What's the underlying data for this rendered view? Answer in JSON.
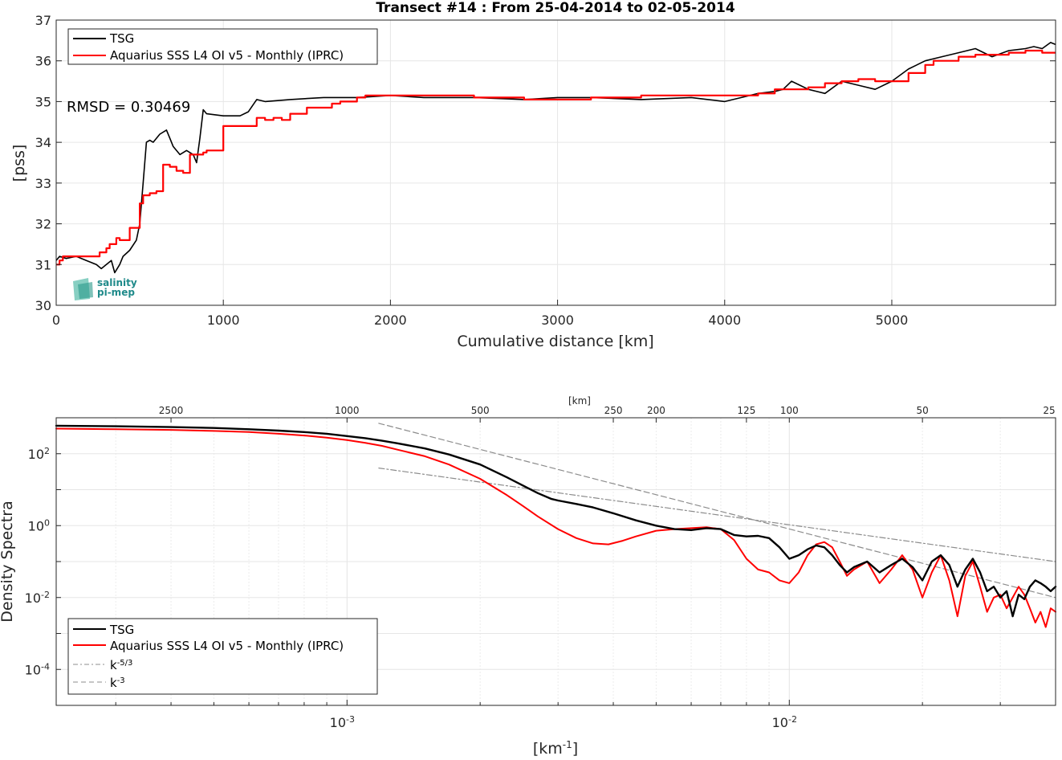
{
  "chart_data": [
    {
      "type": "line",
      "title": "Transect #14 : From 25-04-2014 to 02-05-2014",
      "xlabel": "Cumulative distance [km]",
      "ylabel": "[pss]",
      "xlim": [
        0,
        5980
      ],
      "ylim": [
        30,
        37
      ],
      "xticks": [
        0,
        1000,
        2000,
        3000,
        4000,
        5000
      ],
      "yticks": [
        30,
        31,
        32,
        33,
        34,
        35,
        36,
        37
      ],
      "grid": true,
      "legend_position": "top-left",
      "annotation": "RMSD = 0.30469",
      "logo": "salinity pi-mep",
      "colors": {
        "TSG": "#000000",
        "Aquarius": "#ff0000"
      },
      "series": [
        {
          "name": "TSG",
          "x": [
            0,
            20,
            60,
            120,
            180,
            240,
            270,
            300,
            330,
            350,
            380,
            400,
            440,
            480,
            500,
            520,
            540,
            560,
            580,
            620,
            660,
            680,
            700,
            740,
            780,
            820,
            840,
            860,
            880,
            900,
            1000,
            1100,
            1150,
            1200,
            1250,
            1400,
            1600,
            1800,
            2000,
            2200,
            2500,
            2800,
            3000,
            3200,
            3500,
            3800,
            3900,
            4000,
            4100,
            4200,
            4300,
            4350,
            4400,
            4450,
            4500,
            4600,
            4700,
            4800,
            4900,
            5000,
            5100,
            5150,
            5200,
            5300,
            5400,
            5500,
            5600,
            5700,
            5800,
            5850,
            5900,
            5950,
            5980
          ],
          "y": [
            31.1,
            31.2,
            31.15,
            31.2,
            31.1,
            31.0,
            30.9,
            31.0,
            31.1,
            30.8,
            31.0,
            31.2,
            31.35,
            31.6,
            32.0,
            33.0,
            34.0,
            34.05,
            34.0,
            34.2,
            34.3,
            34.1,
            33.9,
            33.7,
            33.8,
            33.7,
            33.5,
            34.1,
            34.8,
            34.7,
            34.65,
            34.65,
            34.75,
            35.05,
            35.0,
            35.05,
            35.1,
            35.1,
            35.15,
            35.1,
            35.1,
            35.05,
            35.1,
            35.1,
            35.05,
            35.1,
            35.05,
            35.0,
            35.1,
            35.2,
            35.25,
            35.3,
            35.5,
            35.4,
            35.3,
            35.2,
            35.5,
            35.4,
            35.3,
            35.5,
            35.8,
            35.9,
            36.0,
            36.1,
            36.2,
            36.3,
            36.1,
            36.25,
            36.3,
            36.35,
            36.3,
            36.45,
            36.4
          ]
        },
        {
          "name": "Aquarius SSS L4 OI v5 - Monthly (IPRC)",
          "x": [
            0,
            20,
            40,
            100,
            160,
            220,
            260,
            300,
            320,
            360,
            380,
            440,
            480,
            500,
            520,
            560,
            600,
            640,
            680,
            720,
            760,
            800,
            840,
            880,
            900,
            1000,
            1050,
            1100,
            1200,
            1250,
            1300,
            1350,
            1400,
            1500,
            1600,
            1650,
            1700,
            1800,
            1850,
            1900,
            2000,
            2200,
            2500,
            2800,
            3000,
            3200,
            3500,
            3900,
            4200,
            4300,
            4350,
            4500,
            4600,
            4700,
            4800,
            4900,
            5000,
            5100,
            5200,
            5250,
            5300,
            5400,
            5500,
            5600,
            5700,
            5800,
            5900,
            5980
          ],
          "y": [
            31.0,
            31.1,
            31.2,
            31.2,
            31.2,
            31.2,
            31.3,
            31.4,
            31.5,
            31.65,
            31.6,
            31.9,
            31.9,
            32.5,
            32.7,
            32.75,
            32.8,
            33.45,
            33.4,
            33.3,
            33.25,
            33.7,
            33.7,
            33.75,
            33.8,
            34.4,
            34.4,
            34.4,
            34.6,
            34.55,
            34.6,
            34.55,
            34.7,
            34.85,
            34.85,
            34.95,
            35.0,
            35.1,
            35.15,
            35.15,
            35.15,
            35.15,
            35.1,
            35.05,
            35.05,
            35.1,
            35.15,
            35.15,
            35.2,
            35.3,
            35.3,
            35.35,
            35.45,
            35.5,
            35.55,
            35.5,
            35.5,
            35.7,
            35.9,
            36.0,
            36.0,
            36.1,
            36.15,
            36.15,
            36.2,
            36.25,
            36.2,
            36.2
          ]
        }
      ]
    },
    {
      "type": "line",
      "xscale": "log",
      "yscale": "log",
      "xlabel": "[km^-1]",
      "ylabel": "Density Spectra",
      "xlim": [
        0.00022,
        0.04
      ],
      "ylim": [
        1e-05,
        1000
      ],
      "xticks": [
        "10^-3",
        "10^-2"
      ],
      "yticks": [
        "10^-4",
        "10^-2",
        "10^0",
        "10^2"
      ],
      "top_axis_label": "[km]",
      "top_axis_ticks": [
        "2500",
        "1000",
        "500",
        "250",
        "200",
        "125",
        "100",
        "50",
        "25"
      ],
      "grid": true,
      "legend_position": "bottom-left",
      "colors": {
        "TSG": "#000000",
        "Aquarius": "#ff0000",
        "k53": "#8c8c8c",
        "k3": "#8c8c8c"
      },
      "series": [
        {
          "name": "TSG",
          "x": [
            0.00022,
            0.0003,
            0.0004,
            0.0005,
            0.0006,
            0.0007,
            0.0008,
            0.0009,
            0.001,
            0.0011,
            0.0012,
            0.0013,
            0.0015,
            0.0017,
            0.002,
            0.0023,
            0.0025,
            0.0027,
            0.0029,
            0.003,
            0.0033,
            0.0036,
            0.004,
            0.0045,
            0.005,
            0.0055,
            0.006,
            0.0065,
            0.007,
            0.0075,
            0.008,
            0.0085,
            0.009,
            0.0095,
            0.01,
            0.0105,
            0.011,
            0.0115,
            0.012,
            0.0125,
            0.013,
            0.0135,
            0.014,
            0.015,
            0.016,
            0.017,
            0.018,
            0.019,
            0.02,
            0.021,
            0.022,
            0.023,
            0.024,
            0.025,
            0.026,
            0.027,
            0.028,
            0.029,
            0.03,
            0.031,
            0.032,
            0.033,
            0.034,
            0.035,
            0.036,
            0.037,
            0.038,
            0.039,
            0.04
          ],
          "y": [
            600,
            580,
            550,
            520,
            480,
            440,
            400,
            360,
            310,
            270,
            230,
            195,
            140,
            95,
            50,
            22,
            13,
            8,
            5.5,
            5,
            4,
            3.2,
            2.2,
            1.4,
            1.0,
            0.8,
            0.75,
            0.85,
            0.8,
            0.55,
            0.5,
            0.52,
            0.45,
            0.25,
            0.12,
            0.15,
            0.22,
            0.28,
            0.25,
            0.15,
            0.08,
            0.05,
            0.07,
            0.1,
            0.05,
            0.08,
            0.12,
            0.07,
            0.03,
            0.1,
            0.15,
            0.08,
            0.02,
            0.06,
            0.12,
            0.05,
            0.015,
            0.02,
            0.01,
            0.015,
            0.003,
            0.012,
            0.009,
            0.02,
            0.03,
            0.025,
            0.02,
            0.015,
            0.02
          ]
        },
        {
          "name": "Aquarius SSS L4 OI v5 - Monthly (IPRC)",
          "x": [
            0.00022,
            0.0003,
            0.0004,
            0.0005,
            0.0006,
            0.0007,
            0.0008,
            0.0009,
            0.001,
            0.0011,
            0.0012,
            0.0013,
            0.0015,
            0.0017,
            0.002,
            0.0023,
            0.0025,
            0.0027,
            0.003,
            0.0033,
            0.0036,
            0.0039,
            0.0042,
            0.0045,
            0.005,
            0.0055,
            0.006,
            0.0065,
            0.007,
            0.0075,
            0.008,
            0.0085,
            0.009,
            0.0095,
            0.01,
            0.0105,
            0.011,
            0.0115,
            0.012,
            0.0125,
            0.013,
            0.0135,
            0.014,
            0.015,
            0.016,
            0.017,
            0.018,
            0.019,
            0.02,
            0.021,
            0.022,
            0.023,
            0.024,
            0.025,
            0.026,
            0.027,
            0.028,
            0.029,
            0.03,
            0.031,
            0.032,
            0.033,
            0.034,
            0.035,
            0.036,
            0.037,
            0.038,
            0.039,
            0.04
          ],
          "y": [
            500,
            480,
            460,
            430,
            400,
            360,
            320,
            280,
            240,
            200,
            165,
            130,
            85,
            50,
            20,
            7,
            3.5,
            1.8,
            0.8,
            0.45,
            0.32,
            0.3,
            0.38,
            0.5,
            0.72,
            0.8,
            0.85,
            0.9,
            0.8,
            0.4,
            0.12,
            0.06,
            0.05,
            0.03,
            0.025,
            0.05,
            0.15,
            0.3,
            0.35,
            0.25,
            0.1,
            0.04,
            0.06,
            0.1,
            0.025,
            0.06,
            0.15,
            0.06,
            0.01,
            0.05,
            0.15,
            0.03,
            0.003,
            0.04,
            0.1,
            0.02,
            0.004,
            0.01,
            0.012,
            0.005,
            0.01,
            0.02,
            0.012,
            0.005,
            0.002,
            0.004,
            0.0015,
            0.005,
            0.004
          ]
        },
        {
          "name": "k^-5/3",
          "x": [
            0.00118,
            0.04
          ],
          "y": [
            40,
            0.1
          ]
        },
        {
          "name": "k^-3",
          "x": [
            0.00118,
            0.04
          ],
          "y": [
            700,
            0.01
          ]
        }
      ]
    }
  ]
}
